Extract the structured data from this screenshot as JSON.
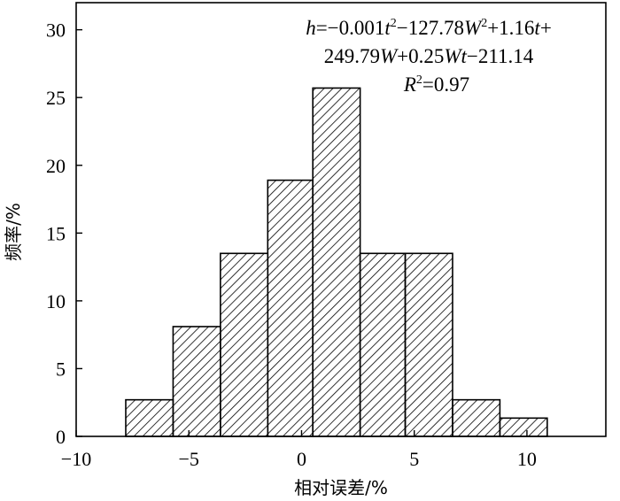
{
  "chart_data": {
    "type": "bar",
    "title": "",
    "xlabel": "相对误差/%",
    "ylabel": "频率/%",
    "xlim": [
      -10,
      13.5
    ],
    "ylim": [
      0,
      32
    ],
    "x_ticks": [
      "−10",
      "−5",
      "0",
      "5",
      "10"
    ],
    "x_tick_values": [
      -10,
      -5,
      0,
      5,
      10
    ],
    "y_ticks": [
      "0",
      "5",
      "10",
      "15",
      "20",
      "25",
      "30"
    ],
    "y_tick_values": [
      0,
      5,
      10,
      15,
      20,
      25,
      30
    ],
    "bin_edges": [
      -7.8,
      -5.7,
      -3.6,
      -1.5,
      0.5,
      2.6,
      4.6,
      6.7,
      8.8,
      10.9
    ],
    "values": [
      2.7,
      8.1,
      13.5,
      18.9,
      25.7,
      13.5,
      13.5,
      2.7,
      1.35
    ],
    "fill_pattern": "diagonal-hatch",
    "grid": false,
    "annotation": {
      "line1_parts": [
        "h",
        "=−0.001",
        "t",
        "2",
        "−127.78",
        "W",
        "2",
        "+1.16",
        "t",
        "+"
      ],
      "line2_parts": [
        "249.79",
        "W",
        "+0.25",
        "Wt",
        "−211.14"
      ],
      "line3_parts": [
        "R",
        "2",
        "=0.97"
      ]
    }
  }
}
